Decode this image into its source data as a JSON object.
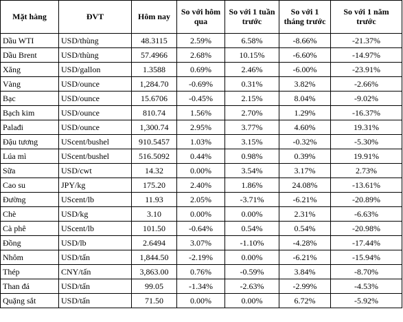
{
  "headers": {
    "item": "Mặt hàng",
    "unit": "ĐVT",
    "today": "Hôm nay",
    "vs_day": "So với hôm qua",
    "vs_week": "So với 1 tuần trước",
    "vs_month": "So với 1 tháng trước",
    "vs_year": "So với 1 năm trước"
  },
  "rows": [
    {
      "item": "Dầu WTI",
      "unit": "USD/thùng",
      "today": "48.3115",
      "day": "2.59%",
      "week": "6.58%",
      "month": "-8.66%",
      "year": "-21.37%"
    },
    {
      "item": "Dầu Brent",
      "unit": "USD/thùng",
      "today": "57.4966",
      "day": "2.68%",
      "week": "10.15%",
      "month": "-6.60%",
      "year": "-14.97%"
    },
    {
      "item": "Xăng",
      "unit": "USD/gallon",
      "today": "1.3588",
      "day": "0.69%",
      "week": "2.46%",
      "month": "-6.00%",
      "year": "-23.91%"
    },
    {
      "item": "Vàng",
      "unit": "USD/ounce",
      "today": "1,284.70",
      "day": "-0.69%",
      "week": "0.31%",
      "month": "3.82%",
      "year": "-2.66%"
    },
    {
      "item": "Bạc",
      "unit": "USD/ounce",
      "today": "15.6706",
      "day": "-0.45%",
      "week": "2.15%",
      "month": "8.04%",
      "year": "-9.02%"
    },
    {
      "item": "Bạch kim",
      "unit": "USD/ounce",
      "today": "810.74",
      "day": "1.56%",
      "week": "2.70%",
      "month": "1.29%",
      "year": "-16.37%"
    },
    {
      "item": "Palađi",
      "unit": "USD/ounce",
      "today": "1,300.74",
      "day": "2.95%",
      "week": "3.77%",
      "month": "4.60%",
      "year": "19.31%"
    },
    {
      "item": "Đậu tương",
      "unit": "UScent/bushel",
      "today": "910.5457",
      "day": "1.03%",
      "week": "3.15%",
      "month": "-0.32%",
      "year": "-5.30%"
    },
    {
      "item": "Lúa mì",
      "unit": "UScent/bushel",
      "today": "516.5092",
      "day": "0.44%",
      "week": "0.98%",
      "month": "0.39%",
      "year": "19.91%"
    },
    {
      "item": "Sữa",
      "unit": "USD/cwt",
      "today": "14.32",
      "day": "0.00%",
      "week": "3.54%",
      "month": "3.17%",
      "year": "2.73%"
    },
    {
      "item": "Cao su",
      "unit": "JPY/kg",
      "today": "175.20",
      "day": "2.40%",
      "week": "1.86%",
      "month": "24.08%",
      "year": "-13.61%"
    },
    {
      "item": "Đường",
      "unit": "UScent/lb",
      "today": "11.93",
      "day": "2.05%",
      "week": "-3.71%",
      "month": "-6.21%",
      "year": "-20.89%"
    },
    {
      "item": "Chè",
      "unit": "USD/kg",
      "today": "3.10",
      "day": "0.00%",
      "week": "0.00%",
      "month": "2.31%",
      "year": "-6.63%"
    },
    {
      "item": "Cà phê",
      "unit": "UScent/lb",
      "today": "101.50",
      "day": "-0.64%",
      "week": "0.54%",
      "month": "0.54%",
      "year": "-20.98%"
    },
    {
      "item": "Đồng",
      "unit": "USD/lb",
      "today": "2.6494",
      "day": "3.07%",
      "week": "-1.10%",
      "month": "-4.28%",
      "year": "-17.44%"
    },
    {
      "item": "Nhôm",
      "unit": "USD/tấn",
      "today": "1,844.50",
      "day": "-2.19%",
      "week": "0.00%",
      "month": "-6.21%",
      "year": "-15.94%"
    },
    {
      "item": "Thép",
      "unit": "CNY/tấn",
      "today": "3,863.00",
      "day": "0.76%",
      "week": "-0.59%",
      "month": "3.84%",
      "year": "-8.70%"
    },
    {
      "item": "Than đá",
      "unit": "USD/tấn",
      "today": "99.05",
      "day": "-1.34%",
      "week": "-2.63%",
      "month": "-2.99%",
      "year": "-4.53%"
    },
    {
      "item": "Quặng sắt",
      "unit": "USD/tấn",
      "today": "71.50",
      "day": "0.00%",
      "week": "0.00%",
      "month": "6.72%",
      "year": "-5.92%"
    }
  ]
}
